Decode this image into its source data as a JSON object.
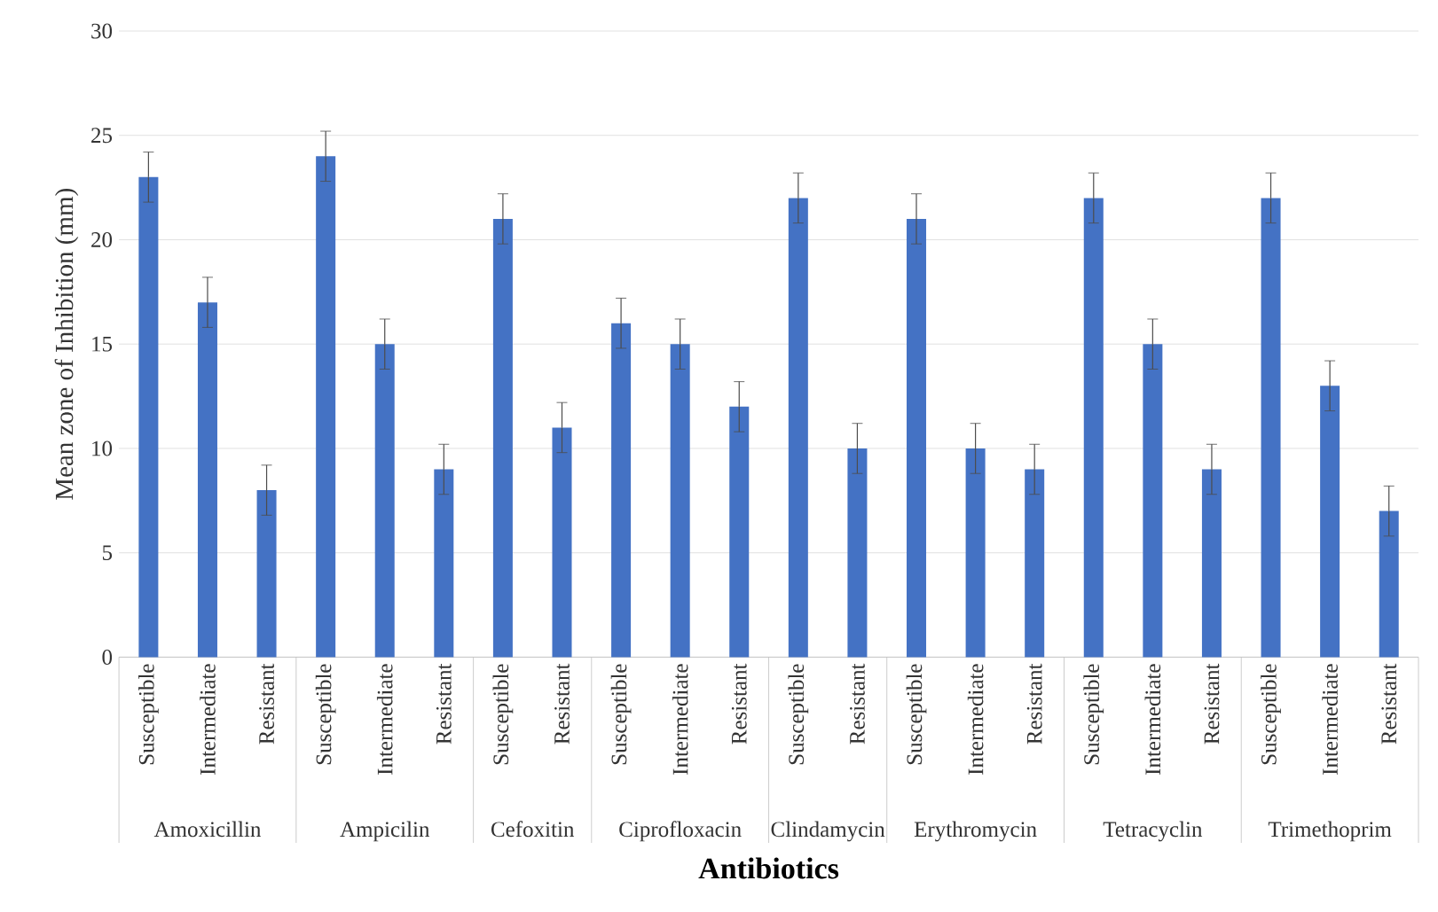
{
  "chart_data": {
    "type": "bar",
    "xlabel": "Antibiotics",
    "ylabel": "Mean zone of Inhibition (mm)",
    "categories": [
      "Susceptible",
      "Intermediate",
      "Resistant",
      "Susceptible",
      "Intermediate",
      "Resistant",
      "Susceptible",
      "Resistant",
      "Susceptible",
      "Intermediate",
      "Resistant",
      "Susceptible",
      "Resistant",
      "Susceptible",
      "Intermediate",
      "Resistant",
      "Susceptible",
      "Intermediate",
      "Resistant",
      "Susceptible",
      "Intermediate",
      "Resistant"
    ],
    "values": [
      23,
      17,
      8,
      24,
      15,
      9,
      21,
      11,
      16,
      15,
      12,
      22,
      10,
      21,
      10,
      9,
      22,
      15,
      9,
      22,
      13,
      7
    ],
    "errors": [
      1.2,
      1.2,
      1.2,
      1.2,
      1.2,
      1.2,
      1.2,
      1.2,
      1.2,
      1.2,
      1.2,
      1.2,
      1.2,
      1.2,
      1.2,
      1.2,
      1.2,
      1.2,
      1.2,
      1.2,
      1.2,
      1.2
    ],
    "annotations": [
      "Amoxicillin",
      "Ampicilin",
      "Cefoxitin",
      "Ciprofloxacin",
      "Clindamycin",
      "Erythromycin",
      "Tetracyclin",
      "Trimethoprim"
    ],
    "color": "#4472c4",
    "ylim": [
      0,
      30
    ],
    "yticks": [
      0,
      5,
      10,
      15,
      20,
      25,
      30
    ],
    "grid": "y"
  }
}
